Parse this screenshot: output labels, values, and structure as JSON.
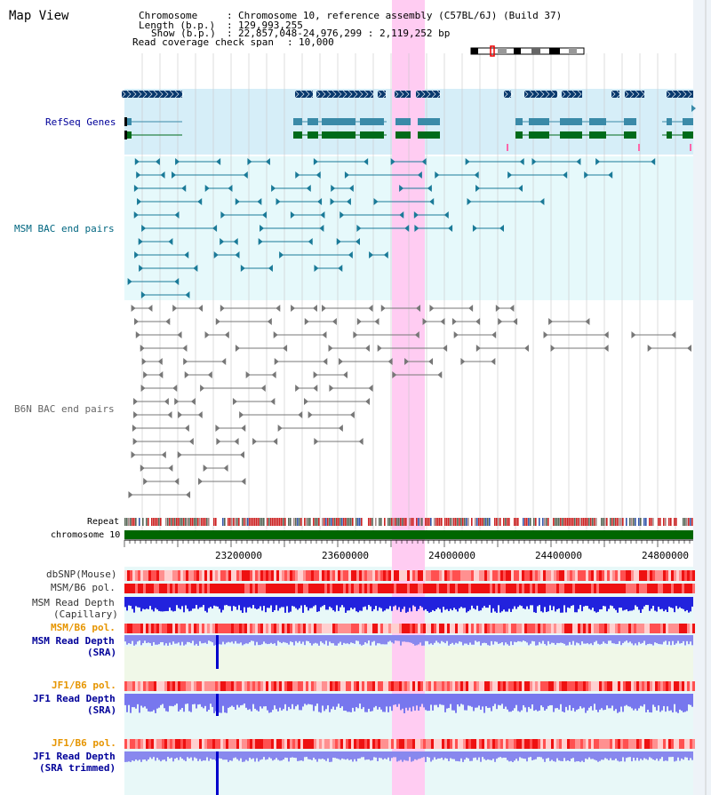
{
  "title": "Map View",
  "info": {
    "chromosome_key": "Chromosome",
    "chromosome_value": "Chromosome 10, reference assembly (C57BL/6J) (Build 37)",
    "length_key": "Length (b.p.)",
    "length_value": "129,993,255",
    "show_key": "Show (b.p.)",
    "show_value": "22,857,048-24,976,299 : 2,119,252 bp",
    "coverage_key": "Read coverage check span",
    "coverage_value": "10,000"
  },
  "tracks": {
    "refseq": "RefSeq Genes",
    "msm_bac": "MSM BAC end pairs",
    "b6n_bac": "B6N BAC end pairs",
    "repeat": "Repeat",
    "chromosome": "chromosome 10",
    "dbsnp": "dbSNP(Mouse)",
    "msm_b6_pol_1": "MSM/B6 pol.",
    "msm_read_depth_cap_1": "MSM Read Depth",
    "msm_read_depth_cap_2": "(Capillary)",
    "msm_b6_pol_2": "MSM/B6 pol.",
    "msm_read_depth_sra_1": "MSM Read Depth",
    "msm_read_depth_sra_2": "(SRA)",
    "jf1_b6_pol_1": "JF1/B6 pol.",
    "jf1_read_depth_sra_1": "JF1 Read Depth",
    "jf1_read_depth_sra_2": "(SRA)",
    "jf1_b6_pol_2": "JF1/B6 pol.",
    "jf1_read_depth_trim_1": "JF1 Read Depth",
    "jf1_read_depth_trim_2": "(SRA trimmed)"
  },
  "axis": {
    "ticks": [
      "23200000",
      "23600000",
      "24000000",
      "24400000",
      "24800000"
    ]
  },
  "colors": {
    "refseq_label": "#000099",
    "msm_label": "#006680",
    "b6n_label": "#666666",
    "pol_orange": "#e69500",
    "depth_blue": "#000099",
    "highlight": "#ffccf2",
    "chromosome_green": "#006600"
  }
}
